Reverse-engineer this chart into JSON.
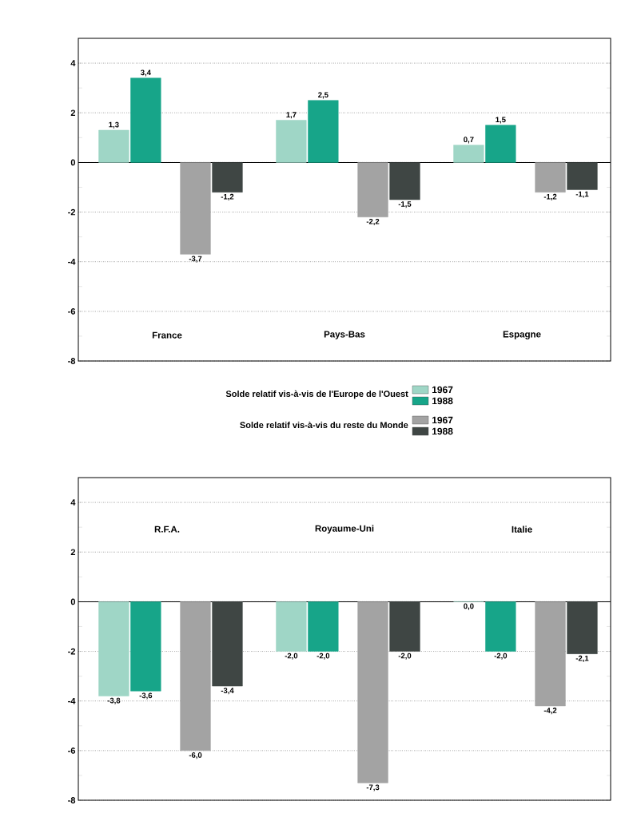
{
  "chart_data": [
    {
      "type": "bar",
      "categories": [
        "France",
        "Pays-Bas",
        "Espagne"
      ],
      "ylim": [
        -8,
        5
      ],
      "yticks": [
        -8,
        -6,
        -4,
        -2,
        0,
        2,
        4
      ],
      "grid": "y",
      "legend": "bottom",
      "annotations": [
        "Solde relatif vis-à-vis de l'Europe de l'Ouest",
        "Solde relatif vis-à-vis du reste du Monde"
      ],
      "series": [
        {
          "name": "1967",
          "color": "#9fd6c6",
          "values": [
            1.3,
            1.7,
            0.7
          ],
          "value_labels": [
            "1,3",
            "1,7",
            "0,7"
          ]
        },
        {
          "name": "1988",
          "color": "#17a589",
          "values": [
            3.4,
            2.5,
            1.5
          ],
          "value_labels": [
            "3,4",
            "2,5",
            "1,5"
          ]
        },
        {
          "name": "1967",
          "color": "#a3a3a3",
          "values": [
            -3.7,
            -2.2,
            -1.2
          ],
          "value_labels": [
            "-3,7",
            "-2,2",
            "-1,2"
          ]
        },
        {
          "name": "1988",
          "color": "#3f4644",
          "values": [
            -1.2,
            -1.5,
            -1.1
          ],
          "value_labels": [
            "-1,2",
            "-1,5",
            "-1,1"
          ]
        }
      ]
    },
    {
      "type": "bar",
      "categories": [
        "R.F.A.",
        "Royaume-Uni",
        "Italie"
      ],
      "ylim": [
        -8,
        5
      ],
      "yticks": [
        -8,
        -6,
        -4,
        -2,
        0,
        2,
        4
      ],
      "grid": "y",
      "series": [
        {
          "color": "#9fd6c6",
          "values": [
            -3.8,
            -2.0,
            0.0
          ],
          "value_labels": [
            "-3,8",
            "-2,0",
            "0,0"
          ]
        },
        {
          "color": "#17a589",
          "values": [
            -3.6,
            -2.0,
            -2.0
          ],
          "value_labels": [
            "-3,6",
            "-2,0",
            "-2,0"
          ]
        },
        {
          "color": "#a3a3a3",
          "values": [
            -6.0,
            -7.3,
            -4.2
          ],
          "value_labels": [
            "-6,0",
            "-7,3",
            "-4,2"
          ]
        },
        {
          "color": "#3f4644",
          "values": [
            -3.4,
            -2.0,
            -2.1
          ],
          "value_labels": [
            "-3,4",
            "-2,0",
            "-2,1"
          ]
        }
      ]
    }
  ]
}
